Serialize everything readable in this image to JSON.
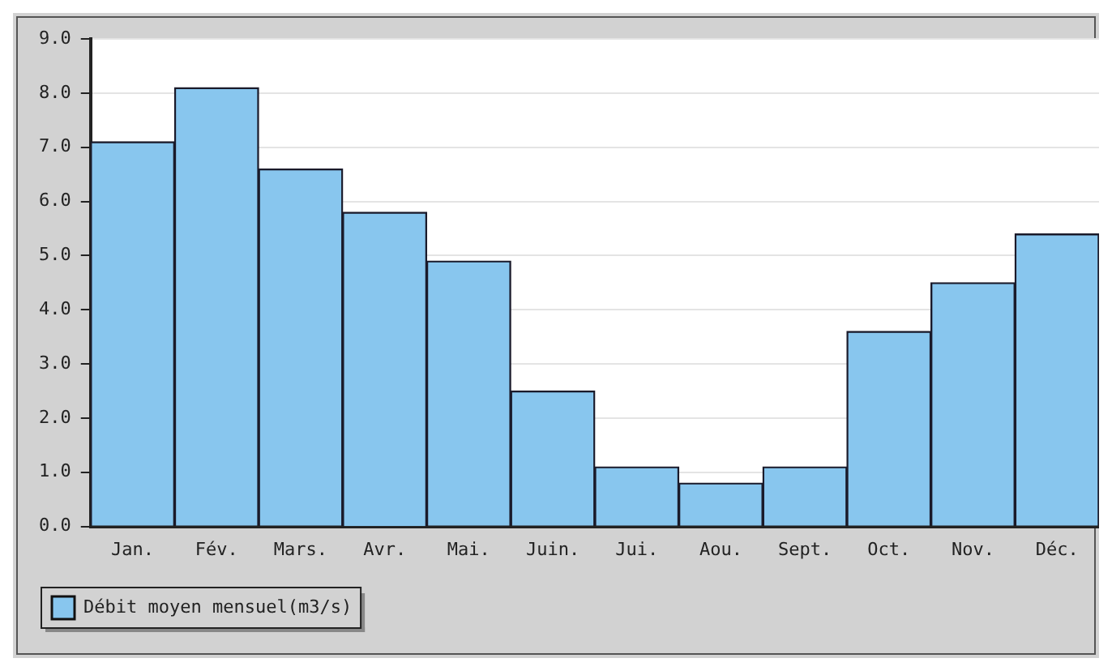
{
  "chart_data": {
    "type": "bar",
    "categories": [
      "Jan.",
      "Fév.",
      "Mars.",
      "Avr.",
      "Mai.",
      "Juin.",
      "Jui.",
      "Aou.",
      "Sept.",
      "Oct.",
      "Nov.",
      "Déc."
    ],
    "series": [
      {
        "name": "Débit moyen mensuel(m3/s)",
        "color": "#88c6ee",
        "values": [
          7.1,
          8.1,
          6.6,
          5.8,
          4.9,
          2.5,
          1.1,
          0.8,
          1.1,
          3.6,
          4.5,
          5.4
        ]
      }
    ],
    "ylim": [
      0,
      9
    ],
    "yticks": [
      {
        "value": 0,
        "label": "0.0"
      },
      {
        "value": 1,
        "label": "1.0"
      },
      {
        "value": 2,
        "label": "2.0"
      },
      {
        "value": 3,
        "label": "3.0"
      },
      {
        "value": 4,
        "label": "4.0"
      },
      {
        "value": 5,
        "label": "5.0"
      },
      {
        "value": 6,
        "label": "6.0"
      },
      {
        "value": 7,
        "label": "7.0"
      },
      {
        "value": 8,
        "label": "8.0"
      },
      {
        "value": 9,
        "label": "9.0"
      }
    ],
    "grid": "y",
    "legend": "bottom left"
  }
}
